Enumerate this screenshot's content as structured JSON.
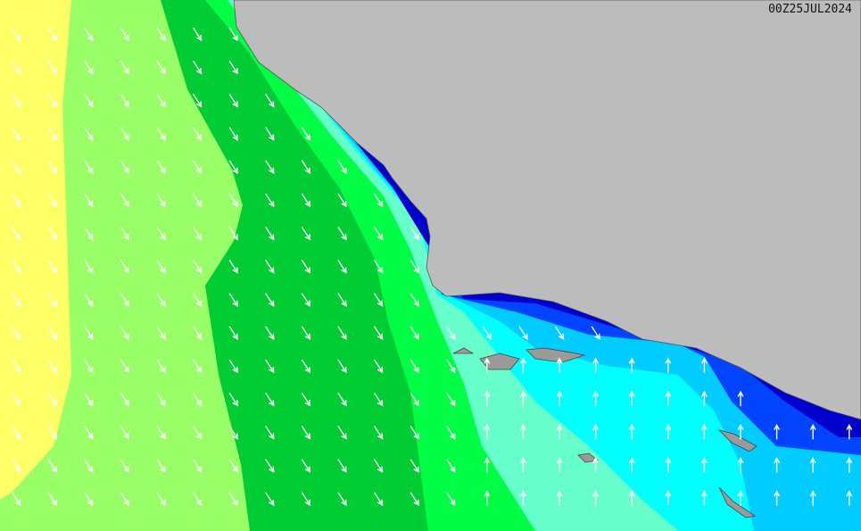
{
  "timestamp": "00Z25JUL2024",
  "colors": {
    "land": "#bcbcbc",
    "band_1": "#ffff66",
    "band_2": "#99ff66",
    "band_3": "#00cc33",
    "band_4": "#00ff44",
    "band_5": "#66ffcc",
    "band_6": "#00ffff",
    "band_7": "#00ccff",
    "band_8": "#0044ff",
    "band_9": "#0000cc",
    "arrow": "#ffffff"
  },
  "arrow_directions": {
    "offshore_west": "southeast",
    "southern_bight": "north"
  }
}
